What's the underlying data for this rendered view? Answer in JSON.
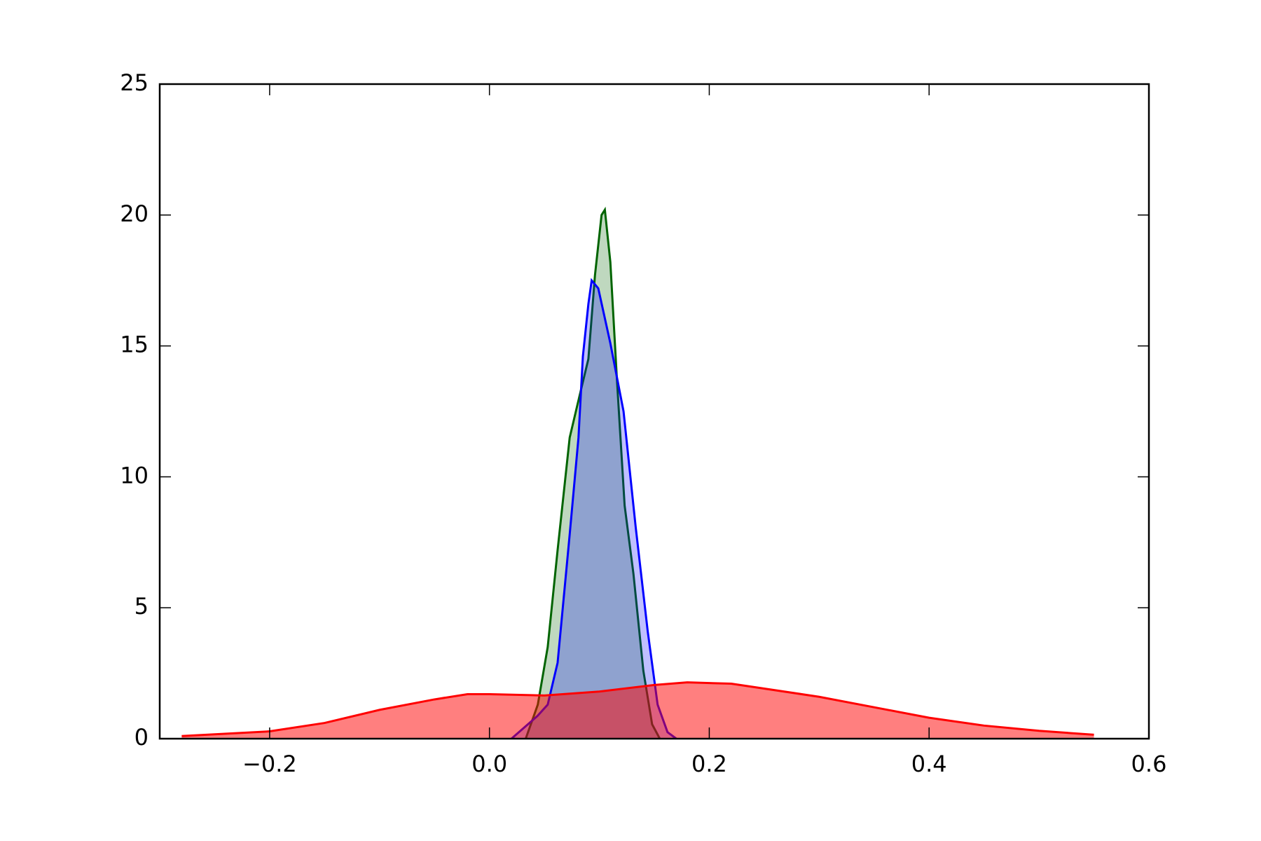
{
  "chart_data": {
    "type": "density",
    "xlim": [
      -0.3,
      0.6
    ],
    "xticks": [
      {
        "value": -0.2,
        "label": "−0.2"
      },
      {
        "value": 0.0,
        "label": "0.0"
      },
      0.2,
      0.4,
      0.6
    ],
    "ylim": [
      0,
      25
    ],
    "yticks": [
      0,
      5,
      10,
      15,
      20,
      25
    ],
    "grid": false,
    "series": [
      {
        "color": "#006400",
        "fill": "rgba(0,100,0,0.25)",
        "x": [
          0.033,
          0.044,
          0.053,
          0.062,
          0.073,
          0.082,
          0.09,
          0.096,
          0.102,
          0.105,
          0.11,
          0.116,
          0.123,
          0.131,
          0.14,
          0.148,
          0.155
        ],
        "values": [
          0,
          1.3,
          3.5,
          7.2,
          11.5,
          13.1,
          14.5,
          17.7,
          20.0,
          20.2,
          18.2,
          13.7,
          8.9,
          6.3,
          2.6,
          0.55,
          0
        ]
      },
      {
        "color": "#0000ff",
        "fill": "rgba(0,0,255,0.25)",
        "x": [
          0.02,
          0.0437,
          0.053,
          0.062,
          0.073,
          0.081,
          0.085,
          0.09,
          0.093,
          0.099,
          0.11,
          0.122,
          0.133,
          0.144,
          0.153,
          0.162,
          0.17
        ],
        "values": [
          0,
          0.87,
          1.3,
          2.9,
          7.8,
          11.5,
          14.6,
          16.6,
          17.5,
          17.2,
          15.1,
          12.5,
          8.1,
          4.1,
          1.3,
          0.25,
          0
        ]
      },
      {
        "color": "#ff0000",
        "fill": "rgba(255,0,0,0.5)",
        "x": [
          -0.28,
          -0.2,
          -0.15,
          -0.1,
          -0.05,
          -0.02,
          0.0,
          0.05,
          0.1,
          0.15,
          0.18,
          0.22,
          0.3,
          0.35,
          0.4,
          0.45,
          0.5,
          0.55
        ],
        "values": [
          0.1,
          0.28,
          0.6,
          1.1,
          1.5,
          1.7,
          1.7,
          1.65,
          1.8,
          2.05,
          2.15,
          2.1,
          1.6,
          1.2,
          0.8,
          0.5,
          0.3,
          0.15
        ]
      }
    ]
  }
}
